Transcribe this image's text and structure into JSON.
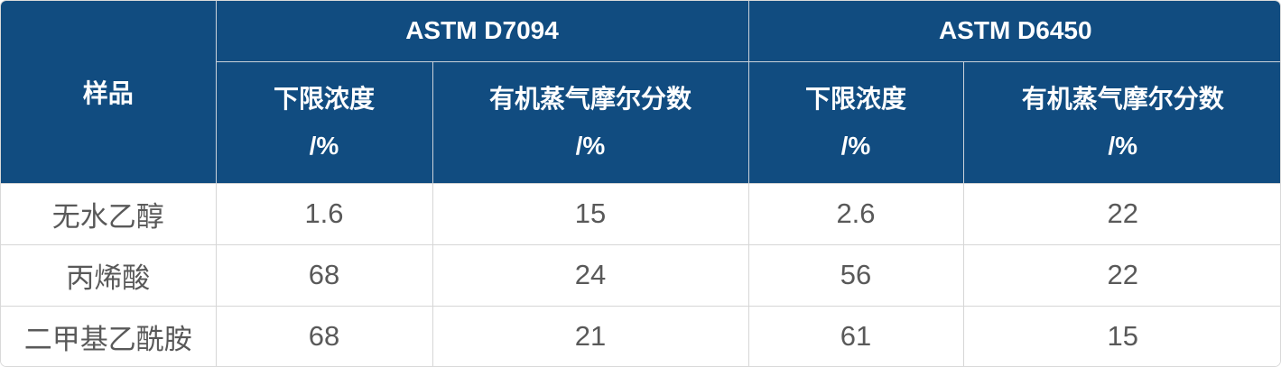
{
  "colors": {
    "header_bg": "#114C80",
    "header_text": "#FFFFFF",
    "body_text": "#595959",
    "grid_line": "#D6D6D6",
    "header_grid_line": "#CBD2DA"
  },
  "chart_data": {
    "type": "table",
    "sample_header": "样品",
    "column_groups": [
      {
        "label": "ASTM D7094",
        "span": 2
      },
      {
        "label": "ASTM D6450",
        "span": 2
      }
    ],
    "sub_headers": [
      {
        "label": "下限浓度",
        "unit": "/%"
      },
      {
        "label": "有机蒸气摩尔分数",
        "unit": "/%"
      },
      {
        "label": "下限浓度",
        "unit": "/%"
      },
      {
        "label": "有机蒸气摩尔分数",
        "unit": "/%"
      }
    ],
    "rows": [
      {
        "sample": "无水乙醇",
        "values": [
          "1.6",
          "15",
          "2.6",
          "22"
        ]
      },
      {
        "sample": "丙烯酸",
        "values": [
          "68",
          "24",
          "56",
          "22"
        ]
      },
      {
        "sample": "二甲基乙酰胺",
        "values": [
          "68",
          "21",
          "61",
          "15"
        ]
      }
    ]
  }
}
